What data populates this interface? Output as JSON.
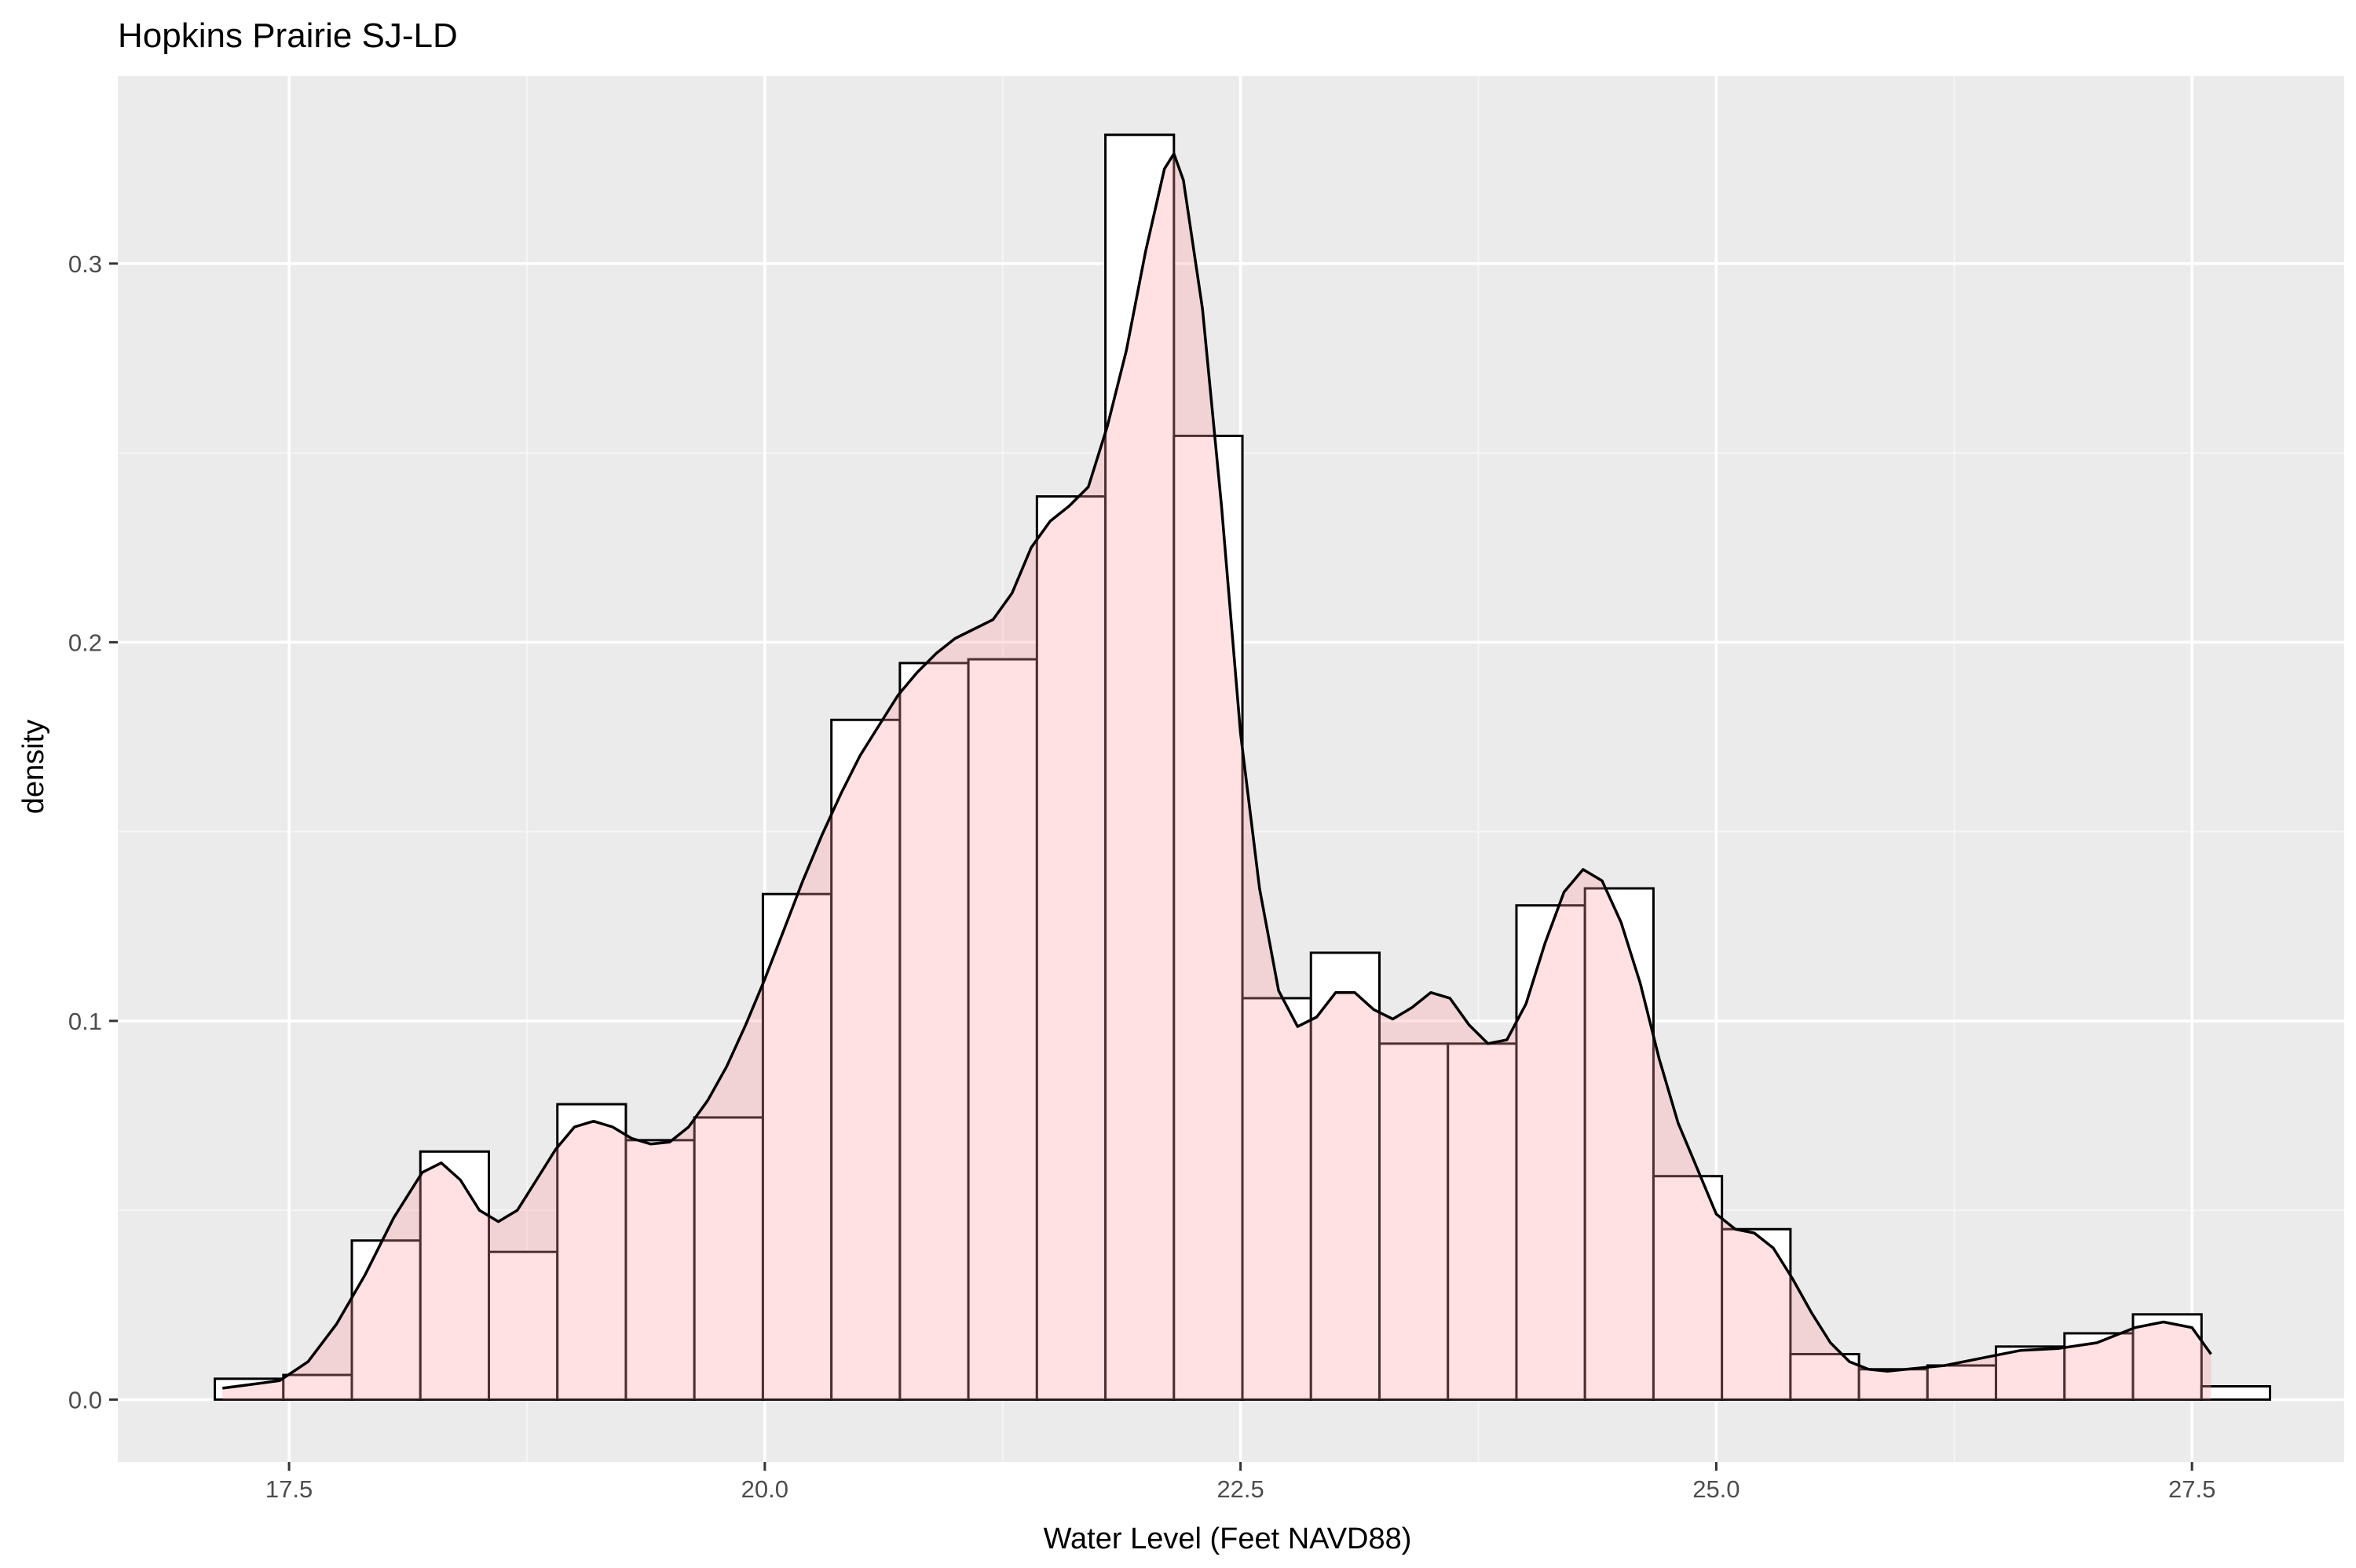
{
  "chart_data": {
    "type": "histogram",
    "title": "Hopkins Prairie SJ-LD",
    "xlabel": "Water Level (Feet NAVD88)",
    "ylabel": "density",
    "xlim": [
      16.6,
      28.3
    ],
    "ylim": [
      -0.0165,
      0.3495
    ],
    "x_ticks": [
      17.5,
      20.0,
      22.5,
      25.0,
      27.5
    ],
    "x_tick_labels": [
      "17.5",
      "20.0",
      "22.5",
      "25.0",
      "27.5"
    ],
    "y_ticks": [
      0.0,
      0.1,
      0.2,
      0.3
    ],
    "y_tick_labels": [
      "0.0",
      "0.1",
      "0.2",
      "0.3"
    ],
    "grid": true,
    "histogram": {
      "bin_edges": [
        17.11,
        17.47,
        17.83,
        18.19,
        18.55,
        18.91,
        19.27,
        19.63,
        19.99,
        20.35,
        20.71,
        21.07,
        21.43,
        21.79,
        22.15,
        22.51,
        22.87,
        23.23,
        23.59,
        23.95,
        24.31,
        24.67,
        25.03,
        25.39,
        25.75,
        26.11,
        26.47,
        26.83,
        27.19,
        27.55,
        27.91
      ],
      "values": [
        0.0055,
        0.0065,
        0.042,
        0.0655,
        0.039,
        0.078,
        0.0685,
        0.0745,
        0.1335,
        0.1795,
        0.1945,
        0.1955,
        0.2385,
        0.334,
        0.2545,
        0.106,
        0.118,
        0.094,
        0.094,
        0.1305,
        0.135,
        0.059,
        0.045,
        0.012,
        0.008,
        0.009,
        0.014,
        0.0175,
        0.0225,
        0.0035
      ]
    },
    "density": {
      "x": [
        17.15,
        17.3,
        17.45,
        17.6,
        17.75,
        17.9,
        18.05,
        18.2,
        18.3,
        18.4,
        18.5,
        18.6,
        18.7,
        18.8,
        18.9,
        19.0,
        19.1,
        19.2,
        19.3,
        19.4,
        19.5,
        19.6,
        19.7,
        19.8,
        19.9,
        20.0,
        20.1,
        20.2,
        20.3,
        20.4,
        20.5,
        20.6,
        20.7,
        20.8,
        20.9,
        21.0,
        21.1,
        21.2,
        21.3,
        21.4,
        21.5,
        21.6,
        21.7,
        21.8,
        21.9,
        22.0,
        22.1,
        22.15,
        22.2,
        22.3,
        22.4,
        22.5,
        22.6,
        22.7,
        22.8,
        22.9,
        23.0,
        23.1,
        23.2,
        23.3,
        23.4,
        23.5,
        23.6,
        23.7,
        23.8,
        23.9,
        24.0,
        24.1,
        24.2,
        24.3,
        24.4,
        24.5,
        24.6,
        24.7,
        24.8,
        24.9,
        25.0,
        25.1,
        25.2,
        25.3,
        25.4,
        25.5,
        25.6,
        25.7,
        25.8,
        25.9,
        26.0,
        26.2,
        26.4,
        26.6,
        26.8,
        27.0,
        27.2,
        27.35,
        27.5,
        27.6
      ],
      "y": [
        0.003,
        0.004,
        0.005,
        0.01,
        0.02,
        0.033,
        0.048,
        0.06,
        0.0625,
        0.058,
        0.05,
        0.047,
        0.05,
        0.058,
        0.066,
        0.072,
        0.0735,
        0.072,
        0.069,
        0.0675,
        0.068,
        0.072,
        0.079,
        0.088,
        0.099,
        0.111,
        0.124,
        0.137,
        0.149,
        0.16,
        0.17,
        0.178,
        0.186,
        0.192,
        0.197,
        0.201,
        0.2035,
        0.206,
        0.213,
        0.225,
        0.232,
        0.236,
        0.241,
        0.257,
        0.277,
        0.303,
        0.325,
        0.329,
        0.322,
        0.288,
        0.236,
        0.176,
        0.135,
        0.108,
        0.0985,
        0.101,
        0.1075,
        0.1075,
        0.103,
        0.1005,
        0.1035,
        0.1075,
        0.106,
        0.099,
        0.094,
        0.095,
        0.1045,
        0.1205,
        0.134,
        0.14,
        0.137,
        0.126,
        0.11,
        0.09,
        0.073,
        0.061,
        0.049,
        0.045,
        0.044,
        0.04,
        0.032,
        0.023,
        0.015,
        0.01,
        0.008,
        0.0075,
        0.008,
        0.009,
        0.011,
        0.013,
        0.0135,
        0.015,
        0.019,
        0.0205,
        0.019,
        0.012
      ]
    }
  },
  "colors": {
    "panel": "#EBEBEB",
    "grid_major": "#FFFFFF",
    "grid_minor": "#F5F5F5",
    "bar_fill": "#FFFFFF",
    "bar_stroke": "#000000",
    "density_fill": "#FF9AA2",
    "density_fill_opacity": 0.3,
    "density_stroke": "#000000",
    "tick_label": "#4D4D4D",
    "tick_mark": "#333333"
  }
}
